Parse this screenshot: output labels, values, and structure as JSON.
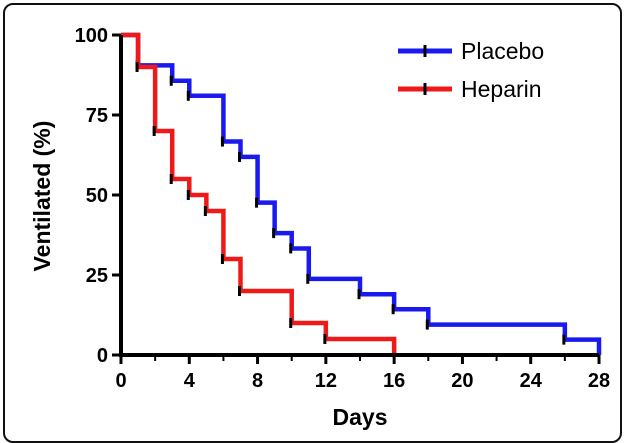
{
  "chart_data": {
    "type": "line",
    "step": true,
    "xlabel": "Days",
    "ylabel": "Ventilated (%)",
    "xlim": [
      0,
      28
    ],
    "ylim": [
      0,
      100
    ],
    "xticks": [
      0,
      4,
      8,
      12,
      16,
      20,
      24,
      28
    ],
    "xtick_labels": [
      "0",
      "4",
      "8",
      "12",
      "16",
      "20",
      "24",
      "28"
    ],
    "yticks": [
      0,
      25,
      50,
      75,
      100
    ],
    "ytick_labels": [
      "0",
      "25",
      "50",
      "75",
      "100"
    ],
    "grid": false,
    "legend_position": "top-right",
    "series": [
      {
        "name": "Placebo",
        "color": "#1a1aee",
        "x": [
          0,
          1,
          3,
          4,
          6,
          7,
          8,
          9,
          10,
          11,
          14,
          16,
          18,
          26,
          28
        ],
        "y": [
          100,
          90.5,
          85.7,
          81,
          66.7,
          61.9,
          47.6,
          38.1,
          33.3,
          23.8,
          19,
          14.3,
          9.5,
          4.8,
          0
        ]
      },
      {
        "name": "Heparin",
        "color": "#ee1a1a",
        "x": [
          0,
          1,
          2,
          3,
          4,
          5,
          6,
          7,
          10,
          12,
          16
        ],
        "y": [
          100,
          90,
          70,
          55,
          50,
          45,
          30,
          20,
          10,
          5,
          0
        ]
      }
    ]
  }
}
